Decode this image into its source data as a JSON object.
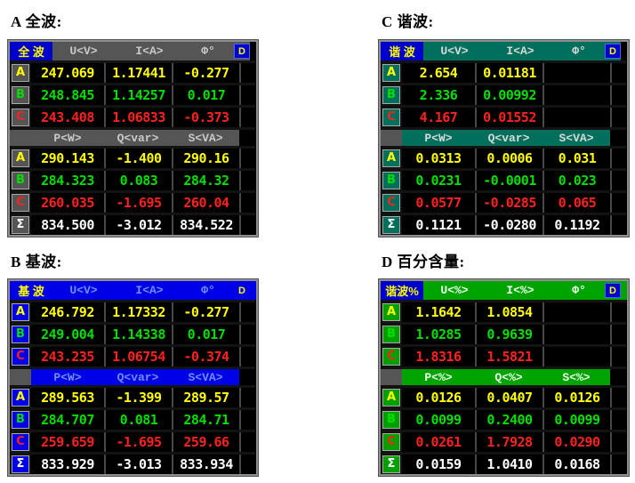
{
  "sections": [
    {
      "title": "A 全波:",
      "panel": {
        "name": "panel-full-wave",
        "tag": "全 波",
        "d_label": "D",
        "sigma_label": "Σ",
        "columns1": [
          "U<V>",
          "I<A>",
          "Φ°"
        ],
        "columns2": [
          "P<W>",
          "Q<var>",
          "S<VA>"
        ],
        "theme": {
          "bar_bg": "#555555",
          "bar_fg": "#c8c8c8",
          "box_bg": "#555555",
          "tag_bg": "#0000cc",
          "hdr_filler": "#000000",
          "dbox_bg": "#0000cc",
          "dbox_border": "#4466ff"
        },
        "rows1": [
          {
            "label": "A",
            "color": "#ffff00",
            "values": [
              "247.069",
              "1.17441",
              "-0.277"
            ]
          },
          {
            "label": "B",
            "color": "#00e000",
            "values": [
              "248.845",
              "1.14257",
              "0.017"
            ]
          },
          {
            "label": "C",
            "color": "#ff2020",
            "values": [
              "243.408",
              "1.06833",
              "-0.373"
            ]
          }
        ],
        "rows2": [
          {
            "label": "A",
            "color": "#ffff00",
            "values": [
              "290.143",
              "-1.400",
              "290.16"
            ]
          },
          {
            "label": "B",
            "color": "#00e000",
            "values": [
              "284.323",
              "0.083",
              "284.32"
            ]
          },
          {
            "label": "C",
            "color": "#ff2020",
            "values": [
              "260.035",
              "-1.695",
              "260.04"
            ]
          },
          {
            "label": "Σ",
            "color": "#ffffff",
            "values": [
              "834.500",
              "-3.012",
              "834.522"
            ]
          }
        ]
      }
    },
    {
      "title": "B 基波:",
      "panel": {
        "name": "panel-fundamental",
        "tag": "基 波",
        "d_label": "D",
        "sigma_label": "Σ",
        "columns1": [
          "U<V>",
          "I<A>",
          "Φ°"
        ],
        "columns2": [
          "P<W>",
          "Q<var>",
          "S<VA>"
        ],
        "theme": {
          "bar_bg": "#0000e6",
          "bar_fg": "#6f8fff",
          "box_bg": "#0000e6",
          "tag_bg": "#0000e6",
          "hdr_filler": "#0000e6",
          "dbox_bg": "#0000e6",
          "dbox_border": "#0000e6"
        },
        "rows1": [
          {
            "label": "A",
            "color": "#ffff00",
            "values": [
              "246.792",
              "1.17332",
              "-0.277"
            ]
          },
          {
            "label": "B",
            "color": "#00e000",
            "values": [
              "249.004",
              "1.14338",
              "0.017"
            ]
          },
          {
            "label": "C",
            "color": "#ff2020",
            "values": [
              "243.235",
              "1.06754",
              "-0.374"
            ]
          }
        ],
        "rows2": [
          {
            "label": "A",
            "color": "#ffff00",
            "values": [
              "289.563",
              "-1.399",
              "289.57"
            ]
          },
          {
            "label": "B",
            "color": "#00e000",
            "values": [
              "284.707",
              "0.081",
              "284.71"
            ]
          },
          {
            "label": "C",
            "color": "#ff2020",
            "values": [
              "259.659",
              "-1.695",
              "259.66"
            ]
          },
          {
            "label": "Σ",
            "color": "#ffffff",
            "values": [
              "833.929",
              "-3.013",
              "833.934"
            ]
          }
        ]
      }
    },
    {
      "title": "C 谐波:",
      "panel": {
        "name": "panel-harmonic",
        "tag": "谐 波",
        "d_label": "D",
        "sigma_label": "Σ",
        "columns1": [
          "U<V>",
          "I<A>",
          "Φ°"
        ],
        "columns2": [
          "P<W>",
          "Q<var>",
          "S<VA>"
        ],
        "theme": {
          "bar_bg": "#00705c",
          "bar_fg": "#d8d8d8",
          "box_bg": "#00705c",
          "tag_bg": "#0000cc",
          "hdr_filler": "#000000",
          "dbox_bg": "#0000cc",
          "dbox_border": "#4466ff"
        },
        "rows1": [
          {
            "label": "A",
            "color": "#ffff00",
            "values": [
              "2.654",
              "0.01181",
              ""
            ]
          },
          {
            "label": "B",
            "color": "#00e000",
            "values": [
              "2.336",
              "0.00992",
              ""
            ]
          },
          {
            "label": "C",
            "color": "#ff2020",
            "values": [
              "4.167",
              "0.01552",
              ""
            ]
          }
        ],
        "rows2": [
          {
            "label": "A",
            "color": "#ffff00",
            "values": [
              "0.0313",
              "0.0006",
              "0.031"
            ]
          },
          {
            "label": "B",
            "color": "#00e000",
            "values": [
              "0.0231",
              "-0.0001",
              "0.023"
            ]
          },
          {
            "label": "C",
            "color": "#ff2020",
            "values": [
              "0.0577",
              "-0.0285",
              "0.065"
            ]
          },
          {
            "label": "Σ",
            "color": "#ffffff",
            "values": [
              "0.1121",
              "-0.0280",
              "0.1192"
            ]
          }
        ]
      }
    },
    {
      "title": "D 百分含量:",
      "panel": {
        "name": "panel-percent-content",
        "tag": "谐波%",
        "d_label": "D",
        "sigma_label": "Σ",
        "columns1": [
          "U<%>",
          "I<%>",
          "Φ°"
        ],
        "columns2": [
          "P<%>",
          "Q<%>",
          "S<%>"
        ],
        "theme": {
          "bar_bg": "#00a400",
          "bar_fg": "#f0fff0",
          "box_bg": "#00a000",
          "tag_bg": "#0000cc",
          "hdr_filler": "#00a400",
          "dbox_bg": "#0000cc",
          "dbox_border": "#4466ff"
        },
        "rows1": [
          {
            "label": "A",
            "color": "#ffff00",
            "values": [
              "1.1642",
              "1.0854",
              ""
            ]
          },
          {
            "label": "B",
            "color": "#00e000",
            "values": [
              "1.0285",
              "0.9639",
              ""
            ]
          },
          {
            "label": "C",
            "color": "#ff2020",
            "values": [
              "1.8316",
              "1.5821",
              ""
            ]
          }
        ],
        "rows2": [
          {
            "label": "A",
            "color": "#ffff00",
            "values": [
              "0.0126",
              "0.0407",
              "0.0126"
            ]
          },
          {
            "label": "B",
            "color": "#00e000",
            "values": [
              "0.0099",
              "0.2400",
              "0.0099"
            ]
          },
          {
            "label": "C",
            "color": "#ff2020",
            "values": [
              "0.0261",
              "1.7928",
              "0.0290"
            ]
          },
          {
            "label": "Σ",
            "color": "#ffffff",
            "values": [
              "0.0159",
              "1.0410",
              "0.0168"
            ]
          }
        ]
      }
    }
  ]
}
